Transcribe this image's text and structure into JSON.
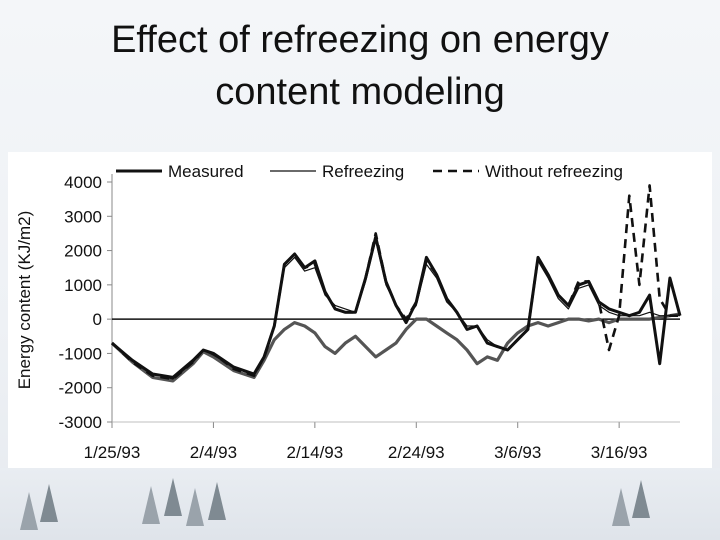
{
  "slide": {
    "title_line1": "Effect of refreezing on energy",
    "title_line2": "content modeling"
  },
  "chart_data": {
    "type": "line",
    "title": "",
    "xlabel": "",
    "ylabel": "Energy content (KJ/m2)",
    "ylim": [
      -3000,
      4000
    ],
    "yticks": [
      4000,
      3000,
      2000,
      1000,
      0,
      -1000,
      -2000,
      -3000
    ],
    "xticks": [
      "1/25/93",
      "2/4/93",
      "2/14/93",
      "2/24/93",
      "3/6/93",
      "3/16/93"
    ],
    "x_units": "days since 1/25/93",
    "grid": false,
    "legend_position": "top",
    "series": [
      {
        "name": "Measured",
        "style": "thick-solid",
        "color": "#111111",
        "x": [
          0,
          2,
          4,
          6,
          8,
          9,
          10,
          12,
          14,
          15,
          16,
          17,
          18,
          19,
          20,
          21,
          22,
          23,
          24,
          25,
          26,
          27,
          28,
          29,
          30,
          31,
          32,
          33,
          34,
          35,
          36,
          37,
          38,
          39,
          40,
          41,
          42,
          43,
          44,
          45,
          46,
          47,
          48,
          49,
          50,
          51,
          52,
          53,
          54,
          55,
          56
        ],
        "y": [
          -700,
          -1200,
          -1600,
          -1700,
          -1200,
          -900,
          -1000,
          -1400,
          -1600,
          -1100,
          -200,
          1600,
          1900,
          1500,
          1700,
          800,
          300,
          200,
          200,
          1200,
          2400,
          1100,
          400,
          -100,
          500,
          1800,
          1300,
          600,
          200,
          -300,
          -200,
          -700,
          -800,
          -900,
          -600,
          -300,
          1800,
          1300,
          700,
          400,
          1000,
          1100,
          500,
          300,
          200,
          100,
          200,
          700,
          -1300,
          1200,
          100
        ]
      },
      {
        "name": "Refreezing",
        "style": "thin-solid",
        "color": "#111111",
        "x": [
          0,
          2,
          4,
          6,
          8,
          9,
          10,
          12,
          14,
          15,
          16,
          17,
          18,
          19,
          20,
          21,
          22,
          23,
          24,
          25,
          26,
          27,
          28,
          29,
          30,
          31,
          32,
          33,
          34,
          35,
          36,
          37,
          38,
          39,
          40,
          41,
          42,
          43,
          44,
          45,
          46,
          47,
          48,
          49,
          50,
          51,
          52,
          53,
          54,
          55,
          56
        ],
        "y": [
          -700,
          -1200,
          -1600,
          -1750,
          -1250,
          -900,
          -1050,
          -1400,
          -1650,
          -1100,
          -150,
          1500,
          1800,
          1400,
          1500,
          700,
          400,
          300,
          200,
          1100,
          2300,
          1000,
          400,
          0,
          400,
          1600,
          1200,
          500,
          200,
          -200,
          -200,
          -600,
          -800,
          -900,
          -600,
          -300,
          1700,
          1200,
          600,
          300,
          900,
          1000,
          400,
          200,
          100,
          100,
          100,
          200,
          100,
          100,
          100
        ]
      },
      {
        "name": "Without refreezing",
        "style": "dashed",
        "color": "#111111",
        "x": [
          0,
          2,
          4,
          6,
          8,
          9,
          10,
          12,
          14,
          15,
          16,
          17,
          18,
          19,
          20,
          21,
          22,
          23,
          24,
          25,
          26,
          27,
          28,
          29,
          30,
          31,
          32,
          33,
          34,
          35,
          36,
          37,
          38,
          39,
          40,
          41,
          42,
          43,
          44,
          45,
          46,
          47,
          48,
          49,
          50,
          51,
          52,
          53,
          54,
          55,
          56
        ],
        "y": [
          -700,
          -1250,
          -1650,
          -1750,
          -1250,
          -900,
          -1000,
          -1450,
          -1650,
          -1100,
          -200,
          1600,
          1900,
          1500,
          1600,
          800,
          300,
          200,
          200,
          1200,
          2500,
          1100,
          400,
          0,
          500,
          1700,
          1300,
          600,
          200,
          -300,
          -200,
          -700,
          -800,
          -900,
          -600,
          -300,
          1800,
          1300,
          700,
          400,
          1100,
          1100,
          500,
          -900,
          100,
          3600,
          1000,
          3900,
          600,
          100,
          100
        ]
      },
      {
        "name": "",
        "style": "gray-thick",
        "color": "#555555",
        "x": [
          0,
          2,
          4,
          6,
          8,
          9,
          10,
          12,
          14,
          15,
          16,
          17,
          18,
          19,
          20,
          21,
          22,
          23,
          24,
          25,
          26,
          27,
          28,
          29,
          30,
          31,
          32,
          33,
          34,
          35,
          36,
          37,
          38,
          39,
          40,
          41,
          42,
          43,
          44,
          45,
          46,
          47,
          48,
          49,
          50,
          51,
          52,
          53,
          54,
          55,
          56
        ],
        "y": [
          -700,
          -1250,
          -1700,
          -1800,
          -1300,
          -950,
          -1100,
          -1500,
          -1700,
          -1200,
          -600,
          -300,
          -100,
          -200,
          -400,
          -800,
          -1000,
          -700,
          -500,
          -800,
          -1100,
          -900,
          -700,
          -300,
          0,
          0,
          -200,
          -400,
          -600,
          -900,
          -1300,
          -1100,
          -1200,
          -700,
          -400,
          -200,
          -100,
          -200,
          -100,
          0,
          0,
          -50,
          0,
          -100,
          0,
          0,
          0,
          0,
          50,
          100,
          150
        ]
      }
    ]
  },
  "icons": {
    "tree_icon": "tree-icon"
  }
}
